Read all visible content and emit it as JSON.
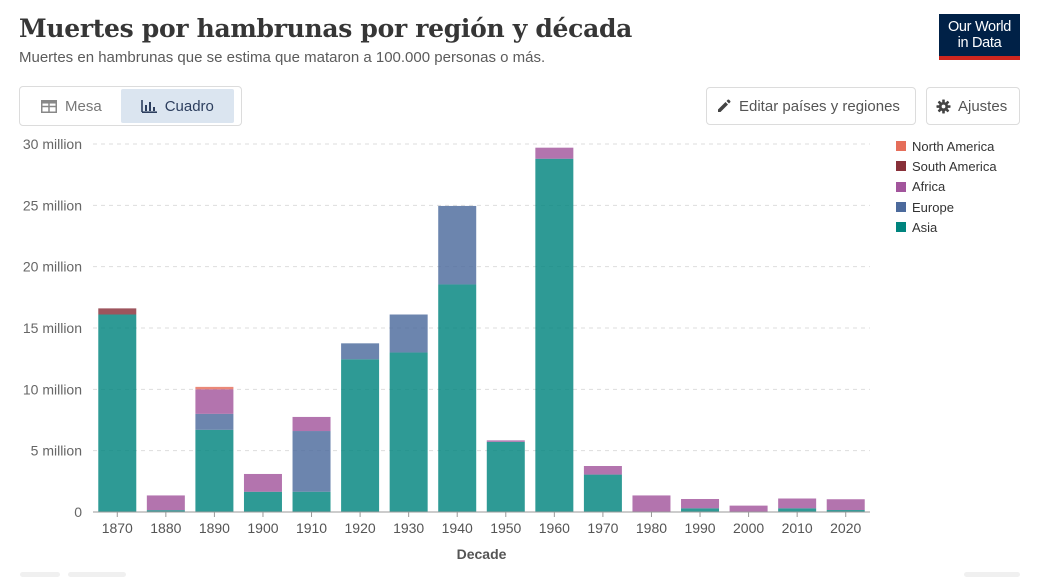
{
  "header": {
    "title": "Muertes por hambrunas por región y década",
    "subtitle": "Muertes en hambrunas que se estima que mataron a 100.000 personas o más.",
    "logo_line1": "Our World",
    "logo_line2": "in Data"
  },
  "tabs": [
    {
      "label": "Mesa",
      "icon": "table-icon",
      "active": false
    },
    {
      "label": "Cuadro",
      "icon": "chart-icon",
      "active": true
    }
  ],
  "toolbar": {
    "edit_label": "Editar países y regiones",
    "settings_label": "Ajustes"
  },
  "chart_data": {
    "type": "bar",
    "stacked": true,
    "xlabel": "Decade",
    "ylabel": "",
    "ylim": [
      0,
      30000000
    ],
    "yticks": [
      0,
      5000000,
      10000000,
      15000000,
      20000000,
      25000000,
      30000000
    ],
    "ytick_labels": [
      "0",
      "5 million",
      "10 million",
      "15 million",
      "20 million",
      "25 million",
      "30 million"
    ],
    "categories": [
      "1870",
      "1880",
      "1890",
      "1900",
      "1910",
      "1920",
      "1930",
      "1940",
      "1950",
      "1960",
      "1970",
      "1980",
      "1990",
      "2000",
      "2010",
      "2020"
    ],
    "legend_position": "top-right",
    "series": [
      {
        "name": "Asia",
        "color": "#00847e",
        "values": [
          16100000,
          150000,
          6700000,
          1650000,
          1650000,
          12450000,
          13000000,
          18550000,
          5720000,
          28800000,
          3050000,
          0,
          300000,
          0,
          300000,
          160000
        ]
      },
      {
        "name": "Europe",
        "color": "#4c6a9c",
        "values": [
          0,
          0,
          1300000,
          0,
          4950000,
          1300000,
          3100000,
          6400000,
          0,
          0,
          0,
          0,
          0,
          0,
          0,
          0
        ]
      },
      {
        "name": "Africa",
        "color": "#a2559c",
        "values": [
          0,
          1200000,
          2000000,
          1450000,
          1150000,
          0,
          0,
          0,
          120000,
          900000,
          700000,
          1350000,
          760000,
          520000,
          800000,
          880000
        ]
      },
      {
        "name": "South America",
        "color": "#883039",
        "values": [
          500000,
          0,
          0,
          0,
          0,
          0,
          0,
          0,
          0,
          0,
          0,
          0,
          0,
          0,
          0,
          0
        ]
      },
      {
        "name": "North America",
        "color": "#e56e5a",
        "values": [
          0,
          0,
          200000,
          0,
          0,
          0,
          0,
          0,
          0,
          0,
          0,
          0,
          0,
          0,
          0,
          0
        ]
      }
    ],
    "legend_order": [
      "North America",
      "South America",
      "Africa",
      "Europe",
      "Asia"
    ]
  }
}
